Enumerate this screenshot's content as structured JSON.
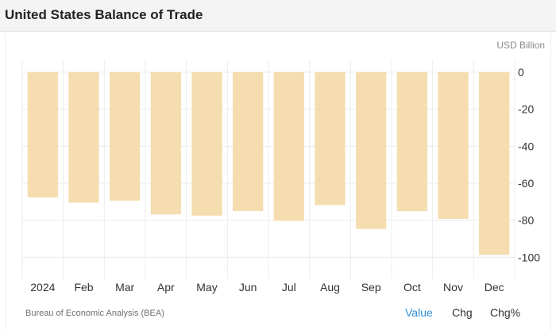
{
  "title": "United States Balance of Trade",
  "unit": "USD Billion",
  "source": "Bureau of Economic Analysis (BEA)",
  "tabs": [
    {
      "label": "Value",
      "active": true
    },
    {
      "label": "Chg",
      "active": false
    },
    {
      "label": "Chg%",
      "active": false
    }
  ],
  "colors": {
    "bar": "#f5ddb0",
    "grid": "#ececec",
    "tab_active": "#2d8fdc",
    "header_bg": "#f4f4f4"
  },
  "chart_data": {
    "type": "bar",
    "categories": [
      "2024",
      "Feb",
      "Mar",
      "Apr",
      "May",
      "Jun",
      "Jul",
      "Aug",
      "Sep",
      "Oct",
      "Nov",
      "Dec"
    ],
    "values": [
      -67.6,
      -70.5,
      -69.4,
      -76.8,
      -77.5,
      -75.0,
      -80.3,
      -71.8,
      -84.7,
      -75.1,
      -79.3,
      -98.7
    ],
    "ylim": [
      -105,
      0
    ],
    "yticks": [
      0,
      -20,
      -40,
      -60,
      -80,
      -100
    ],
    "ylabel": "",
    "xlabel": "",
    "grid": true,
    "y_axis_side": "right"
  }
}
